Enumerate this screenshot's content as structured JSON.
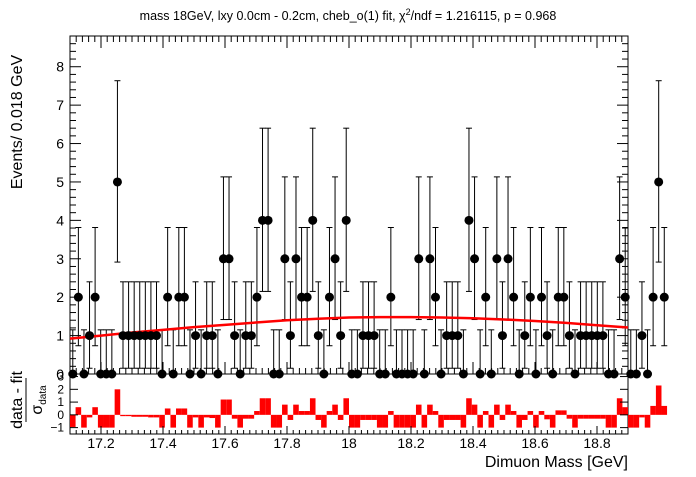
{
  "chart_data": [
    {
      "type": "scatter",
      "title_parts": {
        "pre": "mass 18GeV, lxy 0.0cm - 0.2cm, cheb_o(1) fit, ",
        "chi": "χ",
        "sup": "2",
        "post": "/ndf = 1.216115, p = 0.968"
      },
      "ylabel": "Events/ 0.018 GeV",
      "xlim": [
        17.1,
        18.9
      ],
      "ylim": [
        0,
        8.8
      ],
      "yticks": [
        "0",
        "1",
        "2",
        "3",
        "4",
        "5",
        "6",
        "7",
        "8"
      ],
      "bin_width": 0.018,
      "counts": [
        0,
        2,
        0,
        1,
        2,
        0,
        0,
        0,
        5,
        1,
        1,
        1,
        1,
        1,
        1,
        1,
        0,
        2,
        0,
        2,
        2,
        0,
        1,
        0,
        1,
        1,
        0,
        3,
        3,
        1,
        0,
        1,
        1,
        2,
        4,
        4,
        0,
        0,
        3,
        1,
        3,
        2,
        2,
        4,
        1,
        0,
        2,
        3,
        1,
        4,
        0,
        0,
        1,
        1,
        1,
        0,
        0,
        2,
        0,
        0,
        0,
        0,
        3,
        0,
        3,
        2,
        0,
        1,
        1,
        1,
        0,
        4,
        3,
        0,
        2,
        0,
        3,
        1,
        3,
        2,
        0,
        1,
        2,
        0,
        2,
        1,
        0,
        2,
        2,
        1,
        0,
        1,
        1,
        1,
        1,
        1,
        0,
        0,
        3,
        2,
        0,
        0,
        1,
        0,
        2,
        5,
        2
      ],
      "fit_curve": {
        "x": [
          17.1,
          17.2,
          17.3,
          17.4,
          17.5,
          17.6,
          17.7,
          17.8,
          17.9,
          18.0,
          18.1,
          18.2,
          18.3,
          18.4,
          18.5,
          18.6,
          18.7,
          18.8,
          18.9
        ],
        "y": [
          0.92,
          1.0,
          1.08,
          1.15,
          1.22,
          1.28,
          1.34,
          1.4,
          1.44,
          1.47,
          1.48,
          1.48,
          1.47,
          1.45,
          1.42,
          1.38,
          1.33,
          1.27,
          1.21
        ],
        "color": "#ff0000"
      },
      "marker_color": "#000000"
    },
    {
      "type": "bar",
      "ylabel_num": "data - fit",
      "ylabel_den": "σ",
      "ylabel_den_sub": "data",
      "ylim": [
        -1.5,
        3.2
      ],
      "yticks": [
        "−1",
        "0",
        "1",
        "2",
        "3"
      ],
      "xlabel": "Dimuon Mass [GeV]",
      "xticks": [
        "17.2",
        "17.4",
        "17.6",
        "17.8",
        "18",
        "18.2",
        "18.4",
        "18.6",
        "18.8"
      ],
      "values": [
        -0.95,
        0.6,
        -1.0,
        -0.2,
        0.6,
        -1.0,
        -1.0,
        -1.0,
        2.0,
        -0.1,
        -0.1,
        -0.15,
        -0.15,
        -0.15,
        -0.2,
        -0.2,
        -1.0,
        0.5,
        -1.0,
        0.5,
        0.5,
        -1.0,
        -0.2,
        -1.0,
        -0.2,
        -0.25,
        -1.0,
        1.2,
        1.2,
        -0.3,
        -1.0,
        -0.3,
        -0.3,
        0.3,
        1.3,
        1.3,
        -1.0,
        -1.0,
        0.8,
        -0.4,
        0.8,
        0.3,
        0.3,
        1.3,
        -0.4,
        -1.0,
        0.3,
        0.8,
        -0.4,
        1.3,
        -1.0,
        -1.0,
        -0.4,
        -0.4,
        -0.4,
        -1.0,
        -1.0,
        0.3,
        -1.0,
        -1.0,
        -1.0,
        -1.0,
        0.8,
        -1.0,
        0.8,
        0.3,
        -1.0,
        -0.4,
        -0.4,
        -0.4,
        -1.0,
        1.3,
        0.8,
        -1.0,
        0.3,
        -1.0,
        0.8,
        -0.4,
        0.8,
        0.3,
        -1.0,
        -0.4,
        0.3,
        -1.0,
        0.3,
        -0.35,
        -1.0,
        0.35,
        0.35,
        -0.3,
        -1.0,
        -0.3,
        -0.3,
        -0.3,
        -0.3,
        -0.3,
        -1.0,
        -1.0,
        1.3,
        0.6,
        -1.0,
        -1.0,
        -0.2,
        -1.0,
        0.7,
        2.3,
        0.7
      ],
      "bar_color": "#ff0000"
    }
  ]
}
